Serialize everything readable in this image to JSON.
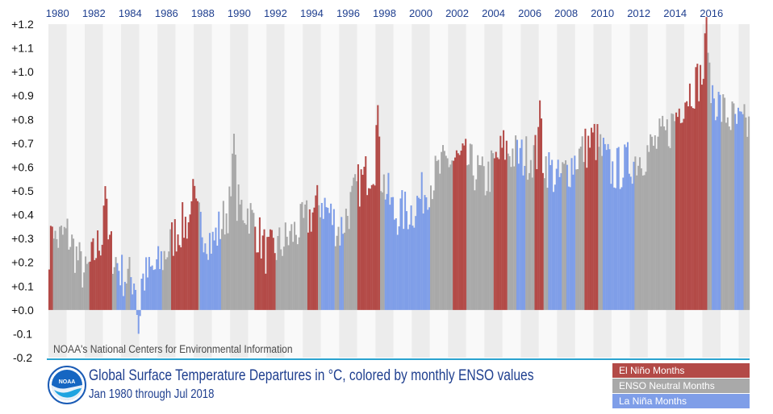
{
  "chart_data": {
    "type": "bar",
    "title": "Global Surface Temperature Departures in °C, colored by monthly ENSO values",
    "subtitle": "Jan 1980 through Jul 2018",
    "credit": "NOAA's National Centers for Environmental Information",
    "ylim": [
      -0.2,
      1.2
    ],
    "ytick_labels": [
      "+1.2",
      "+1.1",
      "+1.0",
      "+0.9",
      "+0.8",
      "+0.7",
      "+0.6",
      "+0.5",
      "+0.4",
      "+0.3",
      "+0.2",
      "+0.1",
      "+0.0",
      "-0.1",
      "-0.2"
    ],
    "xtick_labels": [
      "1980",
      "1982",
      "1984",
      "1986",
      "1988",
      "1990",
      "1992",
      "1994",
      "1996",
      "1998",
      "2000",
      "2002",
      "2004",
      "2006",
      "2008",
      "2010",
      "2012",
      "2014",
      "2016"
    ],
    "x_start": "Jan 1980",
    "x_end": "Jul 2018",
    "phase_codes": {
      "E": "El Niño",
      "N": "ENSO Neutral",
      "L": "La Niña"
    },
    "phases": [
      {
        "start": 1980.0,
        "end": 1980.25,
        "phase": "E"
      },
      {
        "start": 1980.25,
        "end": 1982.25,
        "phase": "N"
      },
      {
        "start": 1982.25,
        "end": 1983.5,
        "phase": "E"
      },
      {
        "start": 1983.5,
        "end": 1983.75,
        "phase": "N"
      },
      {
        "start": 1983.75,
        "end": 1984.25,
        "phase": "L"
      },
      {
        "start": 1984.25,
        "end": 1984.5,
        "phase": "N"
      },
      {
        "start": 1984.5,
        "end": 1986.25,
        "phase": "L"
      },
      {
        "start": 1986.25,
        "end": 1986.67,
        "phase": "N"
      },
      {
        "start": 1986.67,
        "end": 1988.17,
        "phase": "E"
      },
      {
        "start": 1988.17,
        "end": 1988.33,
        "phase": "N"
      },
      {
        "start": 1988.33,
        "end": 1989.5,
        "phase": "L"
      },
      {
        "start": 1989.5,
        "end": 1991.33,
        "phase": "N"
      },
      {
        "start": 1991.33,
        "end": 1992.5,
        "phase": "E"
      },
      {
        "start": 1992.5,
        "end": 1994.25,
        "phase": "N"
      },
      {
        "start": 1994.25,
        "end": 1994.83,
        "phase": "E"
      },
      {
        "start": 1994.83,
        "end": 1995.0,
        "phase": "N"
      },
      {
        "start": 1995.0,
        "end": 1995.75,
        "phase": "L"
      },
      {
        "start": 1995.75,
        "end": 1996.0,
        "phase": "N"
      },
      {
        "start": 1996.0,
        "end": 1996.25,
        "phase": "L"
      },
      {
        "start": 1996.25,
        "end": 1997.0,
        "phase": "N"
      },
      {
        "start": 1997.0,
        "end": 1998.17,
        "phase": "E"
      },
      {
        "start": 1998.17,
        "end": 1998.5,
        "phase": "N"
      },
      {
        "start": 1998.5,
        "end": 2001.0,
        "phase": "L"
      },
      {
        "start": 2001.0,
        "end": 2002.25,
        "phase": "N"
      },
      {
        "start": 2002.25,
        "end": 2003.0,
        "phase": "E"
      },
      {
        "start": 2003.0,
        "end": 2004.5,
        "phase": "N"
      },
      {
        "start": 2004.5,
        "end": 2005.25,
        "phase": "E"
      },
      {
        "start": 2005.25,
        "end": 2005.67,
        "phase": "N"
      },
      {
        "start": 2005.67,
        "end": 2006.17,
        "phase": "L"
      },
      {
        "start": 2006.17,
        "end": 2006.67,
        "phase": "N"
      },
      {
        "start": 2006.67,
        "end": 2007.17,
        "phase": "E"
      },
      {
        "start": 2007.17,
        "end": 2007.5,
        "phase": "N"
      },
      {
        "start": 2007.5,
        "end": 2008.25,
        "phase": "L"
      },
      {
        "start": 2008.25,
        "end": 2008.5,
        "phase": "N"
      },
      {
        "start": 2008.5,
        "end": 2009.0,
        "phase": "L"
      },
      {
        "start": 2009.0,
        "end": 2009.5,
        "phase": "N"
      },
      {
        "start": 2009.5,
        "end": 2010.25,
        "phase": "E"
      },
      {
        "start": 2010.25,
        "end": 2010.5,
        "phase": "N"
      },
      {
        "start": 2010.5,
        "end": 2012.25,
        "phase": "L"
      },
      {
        "start": 2012.25,
        "end": 2014.5,
        "phase": "N"
      },
      {
        "start": 2014.5,
        "end": 2016.25,
        "phase": "E"
      },
      {
        "start": 2016.25,
        "end": 2016.5,
        "phase": "N"
      },
      {
        "start": 2016.5,
        "end": 2017.0,
        "phase": "L"
      },
      {
        "start": 2017.0,
        "end": 2017.75,
        "phase": "N"
      },
      {
        "start": 2017.75,
        "end": 2018.25,
        "phase": "L"
      },
      {
        "start": 2018.25,
        "end": 2018.6,
        "phase": "N"
      }
    ],
    "annual_mean_anomaly": [
      0.27,
      0.32,
      0.14,
      0.33,
      0.15,
      0.12,
      0.18,
      0.33,
      0.4,
      0.28,
      0.45,
      0.41,
      0.23,
      0.29,
      0.36,
      0.46,
      0.33,
      0.52,
      0.63,
      0.4,
      0.42,
      0.54,
      0.63,
      0.62,
      0.54,
      0.68,
      0.64,
      0.66,
      0.54,
      0.64,
      0.72,
      0.58,
      0.62,
      0.67,
      0.74,
      0.9,
      0.99,
      0.84,
      0.77
    ],
    "notable_extremes": [
      {
        "date": "1980.2",
        "value": 0.35
      },
      {
        "date": "1983.1",
        "value": 0.52
      },
      {
        "date": "1984.9",
        "value": -0.1
      },
      {
        "date": "1987.9",
        "value": 0.55
      },
      {
        "date": "1990.2",
        "value": 0.74
      },
      {
        "date": "1998.1",
        "value": 0.86
      },
      {
        "date": "2007.0",
        "value": 0.88
      },
      {
        "date": "2016.2",
        "value": 1.23
      }
    ]
  },
  "legend": [
    {
      "label": "El Niño Months",
      "color": "#b34a47"
    },
    {
      "label": "ENSO Neutral Months",
      "color": "#a9a9a9"
    },
    {
      "label": "La Niña Months",
      "color": "#7f9ee8"
    }
  ],
  "colors": {
    "band_light": "#ececec",
    "band_white": "#f9f9f9",
    "axis_text": "#1f3f8f",
    "rule": "#2aa3cf"
  },
  "logo_text": "NOAA"
}
